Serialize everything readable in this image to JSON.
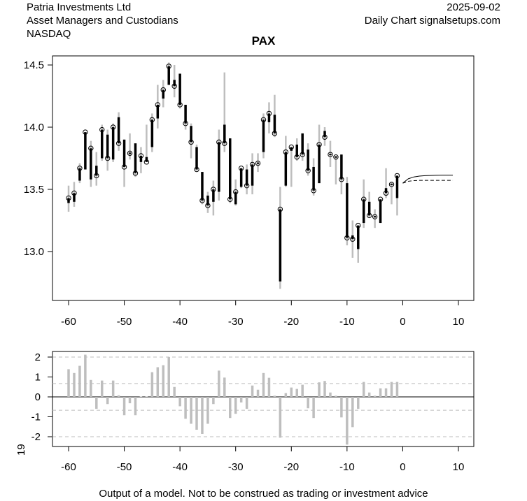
{
  "header": {
    "company": "Patria Investments Ltd",
    "sector": "Asset Managers and Custodians",
    "exchange": "NASDAQ",
    "date": "2025-09-02",
    "source": "Daily Chart signalsetups.com"
  },
  "footer": "Output of a model. Not to be construed as trading or investment advice",
  "side_label": "19",
  "colors": {
    "wick": "#bebebe",
    "body": "#000000",
    "osc": "#bebebe",
    "grid": "#bebebe"
  },
  "chart_data": [
    {
      "type": "candlestick",
      "title": "PAX",
      "xlim": [
        -62,
        11
      ],
      "ylim": [
        12.65,
        14.6
      ],
      "xticks": [
        "-60",
        "-50",
        "-40",
        "-30",
        "-20",
        "-10",
        "0",
        "10"
      ],
      "yticks": [
        "13.0",
        "13.5",
        "14.0",
        "14.5"
      ],
      "x": [
        -60,
        -59,
        -58,
        -57,
        -56,
        -55,
        -54,
        -53,
        -52,
        -51,
        -50,
        -49,
        -48,
        -47,
        -46,
        -45,
        -44,
        -43,
        -42,
        -41,
        -40,
        -39,
        -38,
        -37,
        -36,
        -35,
        -34,
        -33,
        -32,
        -31,
        -30,
        -29,
        -28,
        -27,
        -26,
        -25,
        -24,
        -23,
        -22,
        -21,
        -20,
        -19,
        -18,
        -17,
        -16,
        -15,
        -14,
        -13,
        -12,
        -11,
        -10,
        -9,
        -8,
        -7,
        -6,
        -5,
        -4,
        -3,
        -2,
        -1
      ],
      "open": [
        13.39,
        13.4,
        13.57,
        13.66,
        13.58,
        13.69,
        13.75,
        13.94,
        13.74,
        14.08,
        13.9,
        13.79,
        13.87,
        13.72,
        13.76,
        13.84,
        14.07,
        14.23,
        14.34,
        14.38,
        14.43,
        14.18,
        14.01,
        13.84,
        13.64,
        13.45,
        13.4,
        13.48,
        14.02,
        13.91,
        13.38,
        13.52,
        13.66,
        13.53,
        13.71,
        13.8,
        14.04,
        14.1,
        12.76,
        13.53,
        13.81,
        13.86,
        13.95,
        13.82,
        13.68,
        13.55,
        13.97,
        13.78,
        13.76,
        13.78,
        13.55,
        13.13,
        13.02,
        13.23,
        13.4,
        13.28,
        13.23,
        13.51,
        13.54,
        13.43
      ],
      "close": [
        13.43,
        13.47,
        13.67,
        13.96,
        13.83,
        13.61,
        13.98,
        13.75,
        14.0,
        13.87,
        13.68,
        13.79,
        13.63,
        13.77,
        13.72,
        14.06,
        14.18,
        14.3,
        14.49,
        14.33,
        14.18,
        14.03,
        13.88,
        13.66,
        13.41,
        13.37,
        13.5,
        13.88,
        13.87,
        13.42,
        13.48,
        13.67,
        13.53,
        13.7,
        13.71,
        14.06,
        14.11,
        13.95,
        13.34,
        13.8,
        13.84,
        13.76,
        13.78,
        13.65,
        13.49,
        13.86,
        13.92,
        13.78,
        13.76,
        13.58,
        13.11,
        13.1,
        13.21,
        13.42,
        13.29,
        13.28,
        13.42,
        13.47,
        13.54,
        13.61
      ],
      "high": [
        13.53,
        13.56,
        13.71,
        13.96,
        13.89,
        13.8,
        14.02,
        13.98,
        14.03,
        14.12,
        13.9,
        13.95,
        13.87,
        13.84,
        14.02,
        14.11,
        14.34,
        14.38,
        14.52,
        14.5,
        14.43,
        14.18,
        14.03,
        13.86,
        13.64,
        13.48,
        13.57,
        13.98,
        14.44,
        13.91,
        13.58,
        13.67,
        13.7,
        13.79,
        13.79,
        14.11,
        14.2,
        14.26,
        13.52,
        13.93,
        13.84,
        13.91,
        13.95,
        13.87,
        13.75,
        14.02,
        14.0,
        13.89,
        13.77,
        13.78,
        13.6,
        13.25,
        13.21,
        13.58,
        13.48,
        13.34,
        13.42,
        13.67,
        13.56,
        13.61
      ],
      "low": [
        13.32,
        13.36,
        13.55,
        13.66,
        13.52,
        13.53,
        13.73,
        13.65,
        13.72,
        13.81,
        13.52,
        13.74,
        13.6,
        13.63,
        13.72,
        13.8,
        13.99,
        14.16,
        14.34,
        14.24,
        14.15,
        13.98,
        13.75,
        13.65,
        13.38,
        13.31,
        13.29,
        13.41,
        13.8,
        13.39,
        13.37,
        13.51,
        13.46,
        13.46,
        13.64,
        13.75,
        13.95,
        13.92,
        12.7,
        13.52,
        13.52,
        13.73,
        13.73,
        13.61,
        13.45,
        13.55,
        13.85,
        13.68,
        13.54,
        13.46,
        13.05,
        12.95,
        12.91,
        13.19,
        13.28,
        13.19,
        13.23,
        13.43,
        13.38,
        13.29
      ],
      "forecast": [
        {
          "name": "solid",
          "x": [
            0,
            1,
            2,
            3,
            4,
            5,
            6,
            7,
            8,
            9
          ],
          "y": [
            13.55,
            13.585,
            13.6,
            13.607,
            13.61,
            13.612,
            13.613,
            13.614,
            13.614,
            13.614
          ]
        },
        {
          "name": "dashed",
          "x": [
            0,
            1,
            2,
            3,
            4,
            5,
            6,
            7,
            8,
            9
          ],
          "y": [
            13.55,
            13.565,
            13.57,
            13.572,
            13.572,
            13.572,
            13.572,
            13.572,
            13.572,
            13.572
          ]
        }
      ]
    },
    {
      "type": "bar",
      "ylim": [
        -2.6,
        2.3
      ],
      "yticks": [
        "-2",
        "-1",
        "0",
        "1",
        "2"
      ],
      "xticks": [
        "-60",
        "-50",
        "-40",
        "-30",
        "-20",
        "-10",
        "0",
        "10"
      ],
      "reference_lines": [
        2,
        0.67,
        -0.67,
        -2
      ],
      "x": [
        -60,
        -59,
        -58,
        -57,
        -56,
        -55,
        -54,
        -53,
        -52,
        -51,
        -50,
        -49,
        -48,
        -47,
        -46,
        -45,
        -44,
        -43,
        -42,
        -41,
        -40,
        -39,
        -38,
        -37,
        -36,
        -35,
        -34,
        -33,
        -32,
        -31,
        -30,
        -29,
        -28,
        -27,
        -26,
        -25,
        -24,
        -23,
        -22,
        -21,
        -20,
        -19,
        -18,
        -17,
        -16,
        -15,
        -14,
        -13,
        -12,
        -11,
        -10,
        -9,
        -8,
        -7,
        -6,
        -5,
        -4,
        -3,
        -2,
        -1
      ],
      "values": [
        1.39,
        1.2,
        1.56,
        2.12,
        0.85,
        -0.6,
        0.82,
        -0.36,
        0.82,
        0.08,
        -0.92,
        -0.32,
        -0.92,
        0.02,
        0.02,
        1.24,
        1.49,
        1.59,
        2.0,
        0.5,
        -0.47,
        -1.1,
        -1.35,
        -1.65,
        -1.86,
        -1.35,
        -0.36,
        1.32,
        0.97,
        -1.06,
        -0.85,
        -0.28,
        -0.6,
        0.57,
        0.36,
        1.2,
        0.96,
        0.06,
        -2.05,
        0.19,
        0.47,
        0.4,
        0.61,
        -0.57,
        -1.06,
        0.73,
        0.8,
        0.22,
        0.06,
        -1.03,
        -2.4,
        -1.52,
        -0.6,
        0.75,
        0.22,
        0.06,
        0.43,
        0.43,
        0.75,
        0.75
      ]
    }
  ]
}
